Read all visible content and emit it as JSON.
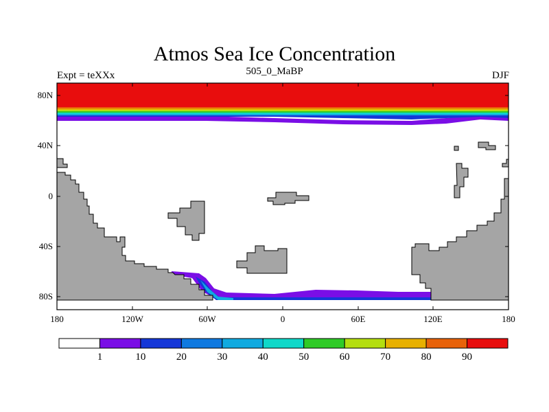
{
  "title": "Atmos Sea Ice Concentration",
  "subtitle_left": "Expt = teXXx",
  "subtitle_center": "505_0_MaBP",
  "subtitle_right": "DJF",
  "axes": {
    "x_ticks": [
      "180",
      "120W",
      "60W",
      "0",
      "60E",
      "120E",
      "180"
    ],
    "y_ticks": [
      "80N",
      "40N",
      "0",
      "40S",
      "80S"
    ]
  },
  "colorbar": {
    "labels": [
      "1",
      "10",
      "20",
      "30",
      "40",
      "50",
      "60",
      "70",
      "80",
      "90"
    ],
    "colors": [
      "#ffffff",
      "#7a0ee6",
      "#1537d8",
      "#0f79e0",
      "#11aae0",
      "#10d8c9",
      "#2fcb27",
      "#b4de10",
      "#e7b000",
      "#e8620a",
      "#e80d0d"
    ]
  },
  "colors": {
    "land": "#a5a5a5",
    "ocean": "#ffffff"
  },
  "chart_data": {
    "type": "heatmap",
    "title": "Atmos Sea Ice Concentration",
    "variable": "sea ice concentration (%)",
    "experiment": "teXXx",
    "period": "505_0_MaBP",
    "season": "DJF",
    "xlim": [
      -180,
      180
    ],
    "ylim": [
      -90,
      90
    ],
    "levels": [
      1,
      10,
      20,
      30,
      40,
      50,
      60,
      70,
      80,
      90
    ]
  }
}
